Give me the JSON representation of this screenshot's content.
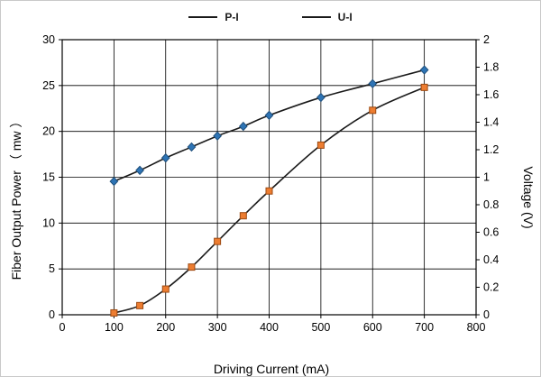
{
  "legend": {
    "items": [
      {
        "label": "P-I"
      },
      {
        "label": "U-I"
      }
    ]
  },
  "chart_data": {
    "type": "line",
    "title": "",
    "xlabel": "Driving Current  (mA)",
    "ylabel_left": "Fiber Output Power （ mw ）",
    "ylabel_right": "Voltage  (V)",
    "x_range": [
      0,
      800
    ],
    "y_left_range": [
      0,
      30
    ],
    "y_right_range": [
      0,
      2
    ],
    "x_ticks": [
      0,
      100,
      200,
      300,
      400,
      500,
      600,
      700,
      800
    ],
    "x_tick_labels": [
      "0",
      "100",
      "200",
      "300",
      "400",
      "500",
      "600",
      "700",
      "800"
    ],
    "y_left_ticks": [
      0,
      5,
      10,
      15,
      20,
      25,
      30
    ],
    "y_left_tick_labels": [
      "0",
      "5",
      "10",
      "15",
      "20",
      "25",
      "30"
    ],
    "y_right_ticks": [
      0,
      0.2,
      0.4,
      0.6,
      0.8,
      1.0,
      1.2,
      1.4,
      1.6,
      1.8,
      2.0
    ],
    "y_right_tick_labels": [
      "0",
      "0.2",
      "0.4",
      "0.6",
      "0.8",
      "1",
      "1.2",
      "1.4",
      "1.6",
      "1.8",
      "2"
    ],
    "grid": true,
    "legend_position": "top",
    "colors": {
      "grid": "#000000",
      "axis": "#000000",
      "line": "#1a1a1a",
      "pi_marker_fill": "#ED7D31",
      "pi_marker_stroke": "#9C4A12",
      "ui_marker_fill": "#2E74B5",
      "ui_marker_stroke": "#1F4E79"
    },
    "series": [
      {
        "name": "P-I",
        "axis": "left",
        "marker": "square",
        "x": [
          100,
          150,
          200,
          250,
          300,
          350,
          400,
          500,
          600,
          700
        ],
        "values": [
          0.2,
          1.0,
          2.8,
          5.2,
          8.0,
          10.8,
          13.5,
          18.5,
          22.3,
          24.8
        ]
      },
      {
        "name": "U-I",
        "axis": "right",
        "marker": "diamond",
        "x": [
          100,
          150,
          200,
          250,
          300,
          350,
          400,
          500,
          600,
          700
        ],
        "values": [
          0.97,
          1.05,
          1.14,
          1.22,
          1.3,
          1.37,
          1.45,
          1.58,
          1.68,
          1.78
        ]
      }
    ]
  }
}
